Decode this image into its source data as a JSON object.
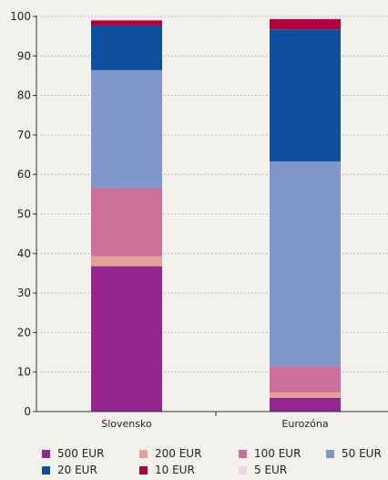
{
  "chart_data": {
    "type": "bar",
    "stacked": true,
    "categories": [
      "Slovensko",
      "Eurozóna"
    ],
    "series": [
      {
        "name": "500 EUR",
        "color": "#93278f",
        "values": [
          36.8,
          3.5
        ]
      },
      {
        "name": "200 EUR",
        "color": "#e3a198",
        "values": [
          2.5,
          1.3
        ]
      },
      {
        "name": "100 EUR",
        "color": "#cc6f9a",
        "values": [
          17.3,
          6.7
        ]
      },
      {
        "name": "50 EUR",
        "color": "#7f97c9",
        "values": [
          29.8,
          51.8
        ]
      },
      {
        "name": "20 EUR",
        "color": "#0b4f9e",
        "values": [
          11.3,
          33.4
        ]
      },
      {
        "name": "10 EUR",
        "color": "#b3003c",
        "values": [
          1.3,
          2.6
        ]
      },
      {
        "name": "5 EUR",
        "color": "#f2d2e6",
        "values": [
          0.3,
          0.3
        ]
      }
    ],
    "y_ticks": [
      0,
      10,
      20,
      30,
      40,
      50,
      60,
      70,
      80,
      90,
      100
    ],
    "ylim": [
      0,
      100
    ],
    "grid": true,
    "legend_position": "bottom"
  }
}
